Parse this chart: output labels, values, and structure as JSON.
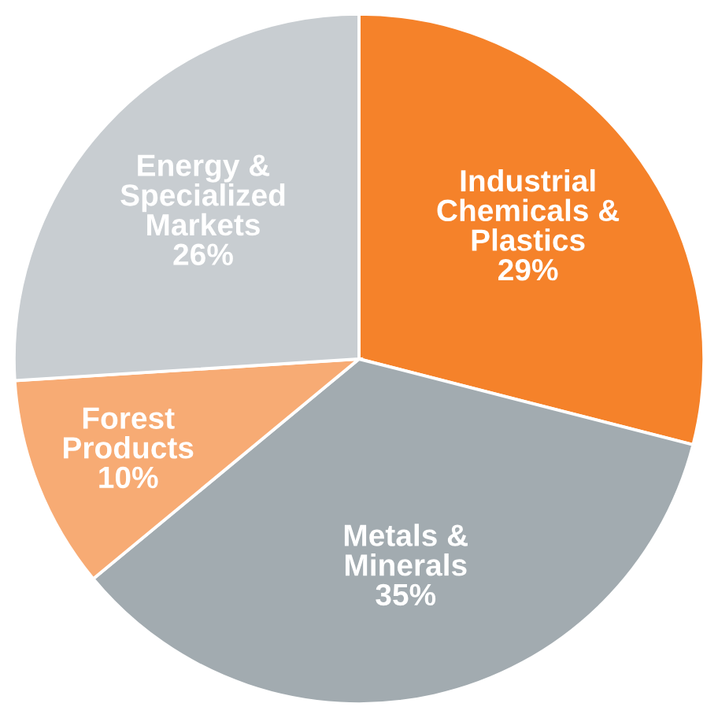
{
  "chart_data": {
    "type": "pie",
    "categories": [
      "Industrial Chemicals & Plastics",
      "Metals & Minerals",
      "Forest Products",
      "Energy & Specialized Markets"
    ],
    "values": [
      29,
      35,
      10,
      26
    ],
    "value_labels": [
      "29%",
      "35%",
      "10%",
      "26%"
    ],
    "colors": [
      "#f5822a",
      "#a2abb0",
      "#f7ab74",
      "#c8cdd1"
    ]
  }
}
